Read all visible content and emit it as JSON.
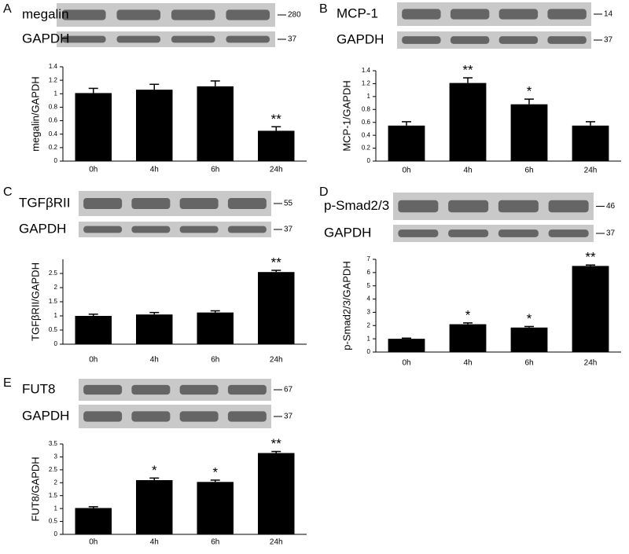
{
  "chart_data": [
    {
      "type": "bar",
      "panel": "A",
      "blots": [
        {
          "label": "megalin",
          "size": 280
        },
        {
          "label": "GAPDH",
          "size": 37
        }
      ],
      "y_label": "megalin/GAPDH",
      "categories": [
        "0h",
        "4h",
        "6h",
        "24h"
      ],
      "values": [
        1.01,
        1.06,
        1.11,
        0.45
      ],
      "errors": [
        0.07,
        0.08,
        0.08,
        0.06
      ],
      "annotations": [
        null,
        null,
        null,
        "**"
      ],
      "color": "#000000",
      "ylim": [
        0,
        1.4
      ],
      "yticks": [
        0,
        0.2,
        0.4,
        0.6,
        0.8,
        1,
        1.2,
        1.4
      ]
    },
    {
      "type": "bar",
      "panel": "B",
      "blots": [
        {
          "label": "MCP-1",
          "size": 14
        },
        {
          "label": "GAPDH",
          "size": 37
        }
      ],
      "y_label": "MCP-1/GAPDH",
      "categories": [
        "0h",
        "4h",
        "6h",
        "24h"
      ],
      "values": [
        0.55,
        1.21,
        0.88,
        0.55
      ],
      "errors": [
        0.06,
        0.08,
        0.08,
        0.06
      ],
      "annotations": [
        null,
        "**",
        "*",
        null
      ],
      "color": "#000000",
      "ylim": [
        0,
        1.4
      ],
      "yticks": [
        0,
        0.2,
        0.4,
        0.6,
        0.8,
        1,
        1.2,
        1.4
      ]
    },
    {
      "type": "bar",
      "panel": "C",
      "blots": [
        {
          "label": "TGFβRII",
          "size": 55
        },
        {
          "label": "GAPDH",
          "size": 37
        }
      ],
      "y_label": "TGFβRII/GAPDH",
      "categories": [
        "0h",
        "4h",
        "6h",
        "24h"
      ],
      "values": [
        1.0,
        1.05,
        1.12,
        2.55
      ],
      "errors": [
        0.06,
        0.07,
        0.06,
        0.06
      ],
      "annotations": [
        null,
        null,
        null,
        "**"
      ],
      "color": "#000000",
      "ylim": [
        0,
        3
      ],
      "yticks": [
        0,
        0.5,
        1,
        1.5,
        2,
        2.5
      ]
    },
    {
      "type": "bar",
      "panel": "D",
      "blots": [
        {
          "label": "p-Smad2/3",
          "size": 46
        },
        {
          "label": "GAPDH",
          "size": 37
        }
      ],
      "y_label": "p-Smad2/3/GAPDH",
      "categories": [
        "0h",
        "4h",
        "6h",
        "24h"
      ],
      "values": [
        1.0,
        2.1,
        1.85,
        6.5
      ],
      "errors": [
        0.05,
        0.1,
        0.08,
        0.07
      ],
      "annotations": [
        null,
        "*",
        "*",
        "**"
      ],
      "color": "#000000",
      "ylim": [
        0,
        7
      ],
      "yticks": [
        0,
        1,
        2,
        3,
        4,
        5,
        6,
        7
      ]
    },
    {
      "type": "bar",
      "panel": "E",
      "blots": [
        {
          "label": "FUT8",
          "size": 67
        },
        {
          "label": "GAPDH",
          "size": 37
        }
      ],
      "y_label": "FUT8/GAPDH",
      "categories": [
        "0h",
        "4h",
        "6h",
        "24h"
      ],
      "values": [
        1.02,
        2.1,
        2.03,
        3.15
      ],
      "errors": [
        0.05,
        0.08,
        0.07,
        0.06
      ],
      "annotations": [
        null,
        "*",
        "*",
        "**"
      ],
      "color": "#000000",
      "ylim": [
        0,
        3.5
      ],
      "yticks": [
        0,
        0.5,
        1,
        1.5,
        2,
        2.5,
        3,
        3.5
      ]
    }
  ]
}
